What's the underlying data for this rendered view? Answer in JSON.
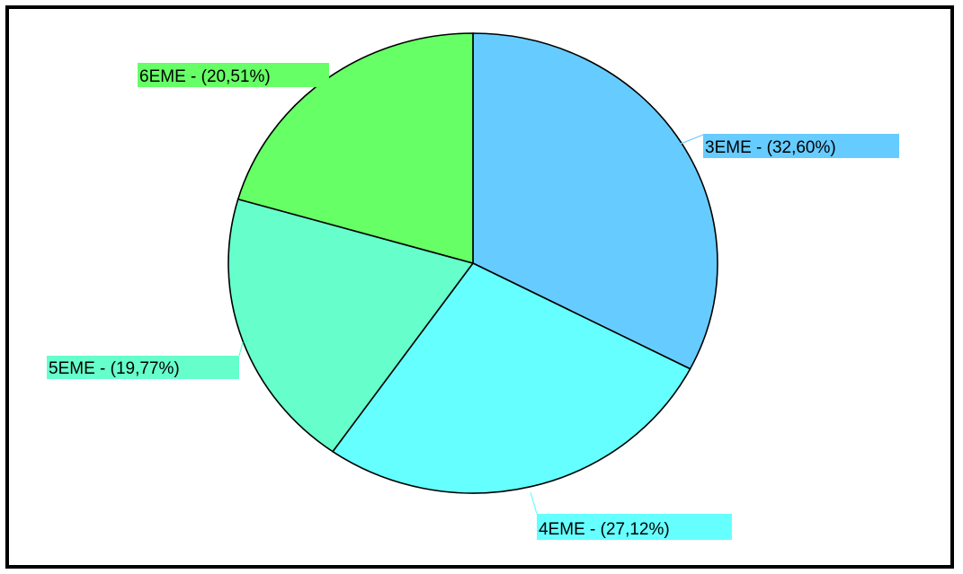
{
  "chart_data": {
    "type": "pie",
    "title": "",
    "legend": "none",
    "start_angle_deg": 0,
    "direction": "clockwise",
    "slices": [
      {
        "name": "3EME",
        "value": 32.6,
        "label": "3EME - (32,60%)",
        "color": "#66CCFF"
      },
      {
        "name": "4EME",
        "value": 27.12,
        "label": "4EME - (27,12%)",
        "color": "#66FFFF"
      },
      {
        "name": "5EME",
        "value": 19.77,
        "label": "5EME - (19,77%)",
        "color": "#66FFCC"
      },
      {
        "name": "6EME",
        "value": 20.51,
        "label": "6EME - (20,51%)",
        "color": "#66FF66"
      }
    ]
  }
}
